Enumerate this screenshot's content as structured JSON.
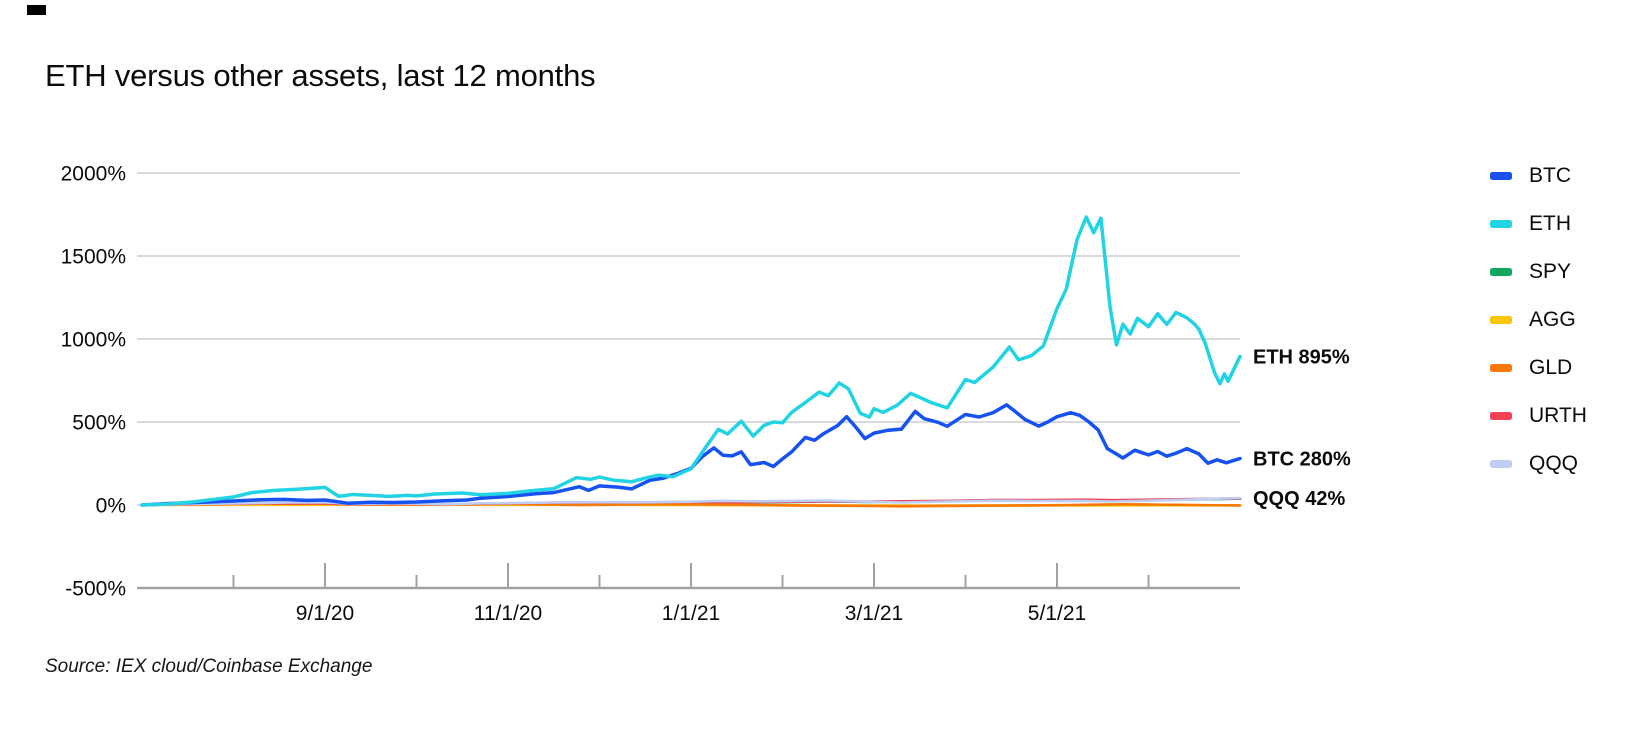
{
  "page": {
    "title": "ETH versus other assets, last 12 months",
    "source": "Source: IEX cloud/Coinbase Exchange"
  },
  "colors": {
    "text": "#0A0B0D",
    "grid": "#D9D9D9",
    "axis": "#9EA1A6",
    "annotation": "#0A0B0D"
  },
  "chart_data": {
    "type": "line",
    "title": "ETH versus other assets, last 12 months",
    "xlabel": "",
    "ylabel": "",
    "x_unit": "months since 7/1/2020",
    "xlim": [
      0,
      12
    ],
    "ylim": [
      -500,
      2000
    ],
    "grid": "horizontal-only",
    "legend_position": "right",
    "y_ticks": [
      {
        "value": 2000,
        "label": "2000%"
      },
      {
        "value": 1500,
        "label": "1500%"
      },
      {
        "value": 1000,
        "label": "1000%"
      },
      {
        "value": 500,
        "label": "500%"
      },
      {
        "value": 0,
        "label": "0%"
      },
      {
        "value": -500,
        "label": "-500%"
      }
    ],
    "x_major_ticks": [
      {
        "m": 2,
        "label": "9/1/20"
      },
      {
        "m": 4,
        "label": "11/1/20"
      },
      {
        "m": 6,
        "label": "1/1/21"
      },
      {
        "m": 8,
        "label": "3/1/21"
      },
      {
        "m": 10,
        "label": "5/1/21"
      }
    ],
    "x_minor_ticks": [
      1,
      3,
      5,
      7,
      9,
      11
    ],
    "draw_order": [
      "SPY",
      "AGG",
      "GLD",
      "URTH",
      "QQQ",
      "BTC",
      "ETH"
    ],
    "annotations": [
      {
        "text": "ETH 895%",
        "value": 895
      },
      {
        "text": "BTC 280%",
        "value": 280
      },
      {
        "text": "QQQ 42%",
        "value": 42
      }
    ],
    "series": [
      {
        "name": "BTC",
        "color": "#1652F0",
        "width": 3.5,
        "final_value_pct": 280,
        "points": [
          [
            0,
            0
          ],
          [
            0.25,
            8
          ],
          [
            0.5,
            14
          ],
          [
            0.8,
            20
          ],
          [
            1,
            24
          ],
          [
            1.3,
            32
          ],
          [
            1.55,
            34
          ],
          [
            1.8,
            28
          ],
          [
            2,
            30
          ],
          [
            2.25,
            11
          ],
          [
            2.5,
            17
          ],
          [
            2.75,
            15
          ],
          [
            3,
            18
          ],
          [
            3.3,
            26
          ],
          [
            3.55,
            30
          ],
          [
            3.7,
            41
          ],
          [
            4,
            51
          ],
          [
            4.3,
            68
          ],
          [
            4.5,
            75
          ],
          [
            4.78,
            110
          ],
          [
            4.88,
            88
          ],
          [
            5,
            115
          ],
          [
            5.2,
            108
          ],
          [
            5.35,
            97
          ],
          [
            5.55,
            149
          ],
          [
            5.7,
            162
          ],
          [
            5.85,
            189
          ],
          [
            6,
            221
          ],
          [
            6.12,
            290
          ],
          [
            6.25,
            344
          ],
          [
            6.35,
            300
          ],
          [
            6.45,
            296
          ],
          [
            6.55,
            320
          ],
          [
            6.65,
            243
          ],
          [
            6.8,
            256
          ],
          [
            6.9,
            232
          ],
          [
            7,
            278
          ],
          [
            7.1,
            320
          ],
          [
            7.25,
            407
          ],
          [
            7.35,
            390
          ],
          [
            7.45,
            430
          ],
          [
            7.6,
            478
          ],
          [
            7.7,
            532
          ],
          [
            7.8,
            470
          ],
          [
            7.9,
            400
          ],
          [
            8,
            433
          ],
          [
            8.15,
            450
          ],
          [
            8.3,
            457
          ],
          [
            8.45,
            564
          ],
          [
            8.55,
            520
          ],
          [
            8.7,
            498
          ],
          [
            8.8,
            474
          ],
          [
            8.9,
            510
          ],
          [
            9,
            545
          ],
          [
            9.15,
            530
          ],
          [
            9.3,
            556
          ],
          [
            9.45,
            603
          ],
          [
            9.55,
            560
          ],
          [
            9.65,
            515
          ],
          [
            9.8,
            475
          ],
          [
            9.9,
            500
          ],
          [
            10,
            532
          ],
          [
            10.15,
            556
          ],
          [
            10.25,
            540
          ],
          [
            10.35,
            500
          ],
          [
            10.45,
            452
          ],
          [
            10.55,
            340
          ],
          [
            10.65,
            307
          ],
          [
            10.72,
            283
          ],
          [
            10.85,
            330
          ],
          [
            11,
            302
          ],
          [
            11.1,
            322
          ],
          [
            11.2,
            294
          ],
          [
            11.3,
            312
          ],
          [
            11.42,
            340
          ],
          [
            11.55,
            308
          ],
          [
            11.65,
            251
          ],
          [
            11.75,
            272
          ],
          [
            11.85,
            254
          ],
          [
            12,
            280
          ]
        ]
      },
      {
        "name": "ETH",
        "color": "#22D3E3",
        "width": 3.5,
        "final_value_pct": 895,
        "points": [
          [
            0,
            0
          ],
          [
            0.3,
            6
          ],
          [
            0.55,
            18
          ],
          [
            0.8,
            35
          ],
          [
            1,
            48
          ],
          [
            1.2,
            75
          ],
          [
            1.45,
            88
          ],
          [
            1.7,
            95
          ],
          [
            2,
            106
          ],
          [
            2.15,
            52
          ],
          [
            2.3,
            63
          ],
          [
            2.5,
            58
          ],
          [
            2.7,
            52
          ],
          [
            2.9,
            58
          ],
          [
            3,
            55
          ],
          [
            3.2,
            66
          ],
          [
            3.5,
            72
          ],
          [
            3.7,
            62
          ],
          [
            4,
            70
          ],
          [
            4.25,
            86
          ],
          [
            4.5,
            98
          ],
          [
            4.75,
            165
          ],
          [
            4.9,
            155
          ],
          [
            5,
            168
          ],
          [
            5.15,
            150
          ],
          [
            5.35,
            140
          ],
          [
            5.5,
            162
          ],
          [
            5.65,
            180
          ],
          [
            5.8,
            170
          ],
          [
            6,
            218
          ],
          [
            6.15,
            340
          ],
          [
            6.3,
            456
          ],
          [
            6.4,
            428
          ],
          [
            6.55,
            505
          ],
          [
            6.68,
            415
          ],
          [
            6.8,
            480
          ],
          [
            6.9,
            500
          ],
          [
            7,
            495
          ],
          [
            7.1,
            558
          ],
          [
            7.25,
            618
          ],
          [
            7.4,
            680
          ],
          [
            7.5,
            658
          ],
          [
            7.62,
            735
          ],
          [
            7.72,
            700
          ],
          [
            7.85,
            552
          ],
          [
            7.95,
            530
          ],
          [
            8,
            580
          ],
          [
            8.1,
            558
          ],
          [
            8.25,
            600
          ],
          [
            8.4,
            672
          ],
          [
            8.5,
            648
          ],
          [
            8.62,
            618
          ],
          [
            8.8,
            585
          ],
          [
            9,
            756
          ],
          [
            9.1,
            738
          ],
          [
            9.3,
            830
          ],
          [
            9.48,
            952
          ],
          [
            9.58,
            874
          ],
          [
            9.72,
            900
          ],
          [
            9.85,
            958
          ],
          [
            10,
            1183
          ],
          [
            10.1,
            1300
          ],
          [
            10.22,
            1600
          ],
          [
            10.32,
            1735
          ],
          [
            10.4,
            1640
          ],
          [
            10.48,
            1728
          ],
          [
            10.58,
            1190
          ],
          [
            10.65,
            965
          ],
          [
            10.72,
            1090
          ],
          [
            10.8,
            1030
          ],
          [
            10.88,
            1125
          ],
          [
            11,
            1074
          ],
          [
            11.1,
            1152
          ],
          [
            11.2,
            1088
          ],
          [
            11.3,
            1160
          ],
          [
            11.42,
            1128
          ],
          [
            11.5,
            1091
          ],
          [
            11.55,
            1060
          ],
          [
            11.62,
            975
          ],
          [
            11.68,
            870
          ],
          [
            11.72,
            800
          ],
          [
            11.78,
            730
          ],
          [
            11.83,
            790
          ],
          [
            11.87,
            745
          ],
          [
            12,
            895
          ]
        ]
      },
      {
        "name": "SPY",
        "color": "#10A85F",
        "width": 2.6,
        "final_value_pct": 38,
        "points": [
          [
            0,
            0
          ],
          [
            0.5,
            4
          ],
          [
            1,
            6
          ],
          [
            1.5,
            9
          ],
          [
            2,
            9
          ],
          [
            2.3,
            3
          ],
          [
            2.8,
            5
          ],
          [
            3.3,
            2
          ],
          [
            3.7,
            6
          ],
          [
            4,
            8
          ],
          [
            4.5,
            12
          ],
          [
            5,
            15
          ],
          [
            5.5,
            14
          ],
          [
            6,
            18
          ],
          [
            6.5,
            15
          ],
          [
            7,
            17
          ],
          [
            7.5,
            22
          ],
          [
            7.9,
            18
          ],
          [
            8.3,
            20
          ],
          [
            8.8,
            24
          ],
          [
            9.3,
            29
          ],
          [
            9.8,
            28
          ],
          [
            10.3,
            30
          ],
          [
            10.6,
            26
          ],
          [
            11,
            30
          ],
          [
            11.5,
            34
          ],
          [
            12,
            38
          ]
        ]
      },
      {
        "name": "AGG",
        "color": "#FBC50D",
        "width": 2.6,
        "final_value_pct": -2,
        "points": [
          [
            0,
            0
          ],
          [
            1,
            1
          ],
          [
            2,
            1
          ],
          [
            3,
            1
          ],
          [
            4,
            1
          ],
          [
            5,
            1
          ],
          [
            6,
            0
          ],
          [
            6.5,
            -1
          ],
          [
            7,
            -2
          ],
          [
            8,
            -3
          ],
          [
            8.5,
            -4
          ],
          [
            9,
            -3
          ],
          [
            10,
            -3
          ],
          [
            11,
            -2
          ],
          [
            12,
            -2
          ]
        ]
      },
      {
        "name": "GLD",
        "color": "#F97808",
        "width": 2.6,
        "final_value_pct": -3,
        "points": [
          [
            0,
            0
          ],
          [
            0.6,
            9
          ],
          [
            1.2,
            14
          ],
          [
            1.5,
            8
          ],
          [
            2,
            10
          ],
          [
            2.5,
            7
          ],
          [
            3,
            6
          ],
          [
            3.5,
            5
          ],
          [
            4,
            6
          ],
          [
            4.8,
            0
          ],
          [
            5,
            1
          ],
          [
            5.5,
            4
          ],
          [
            6,
            4
          ],
          [
            6.5,
            2
          ],
          [
            7,
            -2
          ],
          [
            7.5,
            -4
          ],
          [
            8,
            -6
          ],
          [
            8.3,
            -8
          ],
          [
            9,
            -5
          ],
          [
            9.5,
            -3
          ],
          [
            10,
            -1
          ],
          [
            10.7,
            4
          ],
          [
            11,
            3
          ],
          [
            11.5,
            0
          ],
          [
            12,
            -3
          ]
        ]
      },
      {
        "name": "URTH",
        "color": "#F04255",
        "width": 2.6,
        "final_value_pct": 40,
        "points": [
          [
            0,
            0
          ],
          [
            0.5,
            4
          ],
          [
            1,
            7
          ],
          [
            1.5,
            10
          ],
          [
            2,
            9
          ],
          [
            2.3,
            4
          ],
          [
            2.8,
            5
          ],
          [
            3.3,
            3
          ],
          [
            3.7,
            7
          ],
          [
            4,
            9
          ],
          [
            4.5,
            14
          ],
          [
            5,
            16
          ],
          [
            5.5,
            15
          ],
          [
            6,
            19
          ],
          [
            6.5,
            17
          ],
          [
            7,
            19
          ],
          [
            7.5,
            23
          ],
          [
            7.9,
            20
          ],
          [
            8.3,
            22
          ],
          [
            8.8,
            25
          ],
          [
            9.3,
            30
          ],
          [
            9.8,
            30
          ],
          [
            10.3,
            32
          ],
          [
            10.6,
            29
          ],
          [
            11,
            32
          ],
          [
            11.5,
            36
          ],
          [
            12,
            40
          ]
        ]
      },
      {
        "name": "QQQ",
        "color": "#BDCDF4",
        "width": 2.6,
        "final_value_pct": 42,
        "points": [
          [
            0,
            0
          ],
          [
            0.5,
            6
          ],
          [
            1,
            9
          ],
          [
            1.6,
            15
          ],
          [
            2,
            16
          ],
          [
            2.3,
            6
          ],
          [
            2.8,
            10
          ],
          [
            3.3,
            5
          ],
          [
            3.7,
            10
          ],
          [
            4,
            11
          ],
          [
            4.5,
            15
          ],
          [
            5,
            17
          ],
          [
            5.5,
            16
          ],
          [
            6,
            20
          ],
          [
            6.3,
            25
          ],
          [
            6.8,
            22
          ],
          [
            7.5,
            27
          ],
          [
            7.9,
            20
          ],
          [
            8.3,
            15
          ],
          [
            8.8,
            21
          ],
          [
            9.3,
            26
          ],
          [
            9.8,
            24
          ],
          [
            10.3,
            25
          ],
          [
            10.6,
            21
          ],
          [
            11,
            26
          ],
          [
            11.5,
            34
          ],
          [
            12,
            42
          ]
        ]
      }
    ]
  }
}
